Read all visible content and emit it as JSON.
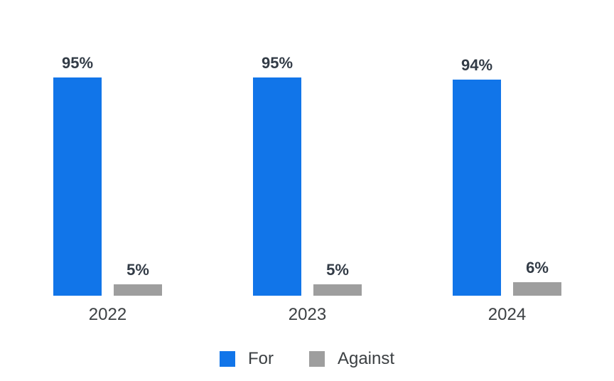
{
  "chart_data": {
    "type": "bar",
    "categories": [
      "2022",
      "2023",
      "2024"
    ],
    "series": [
      {
        "name": "For",
        "color": "#1175e9",
        "values": [
          95,
          95,
          94
        ]
      },
      {
        "name": "Against",
        "color": "#9e9e9e",
        "values": [
          5,
          5,
          6
        ]
      }
    ],
    "value_suffix": "%",
    "title": "",
    "xlabel": "",
    "ylabel": "",
    "ylim": [
      0,
      100
    ],
    "grid": false,
    "legend_position": "bottom",
    "legend_labels": [
      "For",
      "Against"
    ]
  },
  "colors": {
    "for_bar": "#1175e9",
    "against_bar": "#9e9e9e",
    "value_label": "#323b46",
    "axis_label": "#3c4043",
    "background": "#ffffff"
  }
}
